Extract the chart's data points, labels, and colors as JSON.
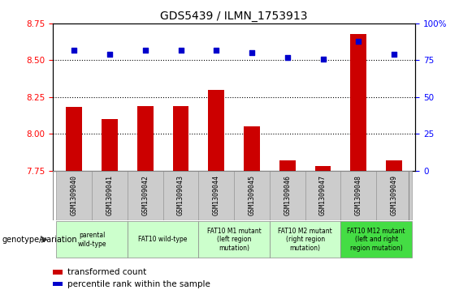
{
  "title": "GDS5439 / ILMN_1753913",
  "samples": [
    "GSM1309040",
    "GSM1309041",
    "GSM1309042",
    "GSM1309043",
    "GSM1309044",
    "GSM1309045",
    "GSM1309046",
    "GSM1309047",
    "GSM1309048",
    "GSM1309049"
  ],
  "transformed_count": [
    8.18,
    8.1,
    8.19,
    8.19,
    8.3,
    8.05,
    7.82,
    7.78,
    8.68,
    7.82
  ],
  "percentile_rank": [
    82,
    79,
    82,
    82,
    82,
    80,
    77,
    76,
    88,
    79
  ],
  "ylim_left": [
    7.75,
    8.75
  ],
  "ylim_right": [
    0,
    100
  ],
  "yticks_left": [
    7.75,
    8.0,
    8.25,
    8.5,
    8.75
  ],
  "yticks_right": [
    0,
    25,
    50,
    75,
    100
  ],
  "bar_color": "#cc0000",
  "dot_color": "#0000cc",
  "dot_size": 22,
  "bar_width": 0.45,
  "grid_dotted_values": [
    8.0,
    8.25,
    8.5
  ],
  "groups": [
    {
      "label": "parental\nwild-type",
      "cols": [
        0,
        1
      ],
      "bg": "#ccffcc"
    },
    {
      "label": "FAT10 wild-type",
      "cols": [
        2,
        3
      ],
      "bg": "#ccffcc"
    },
    {
      "label": "FAT10 M1 mutant\n(left region\nmutation)",
      "cols": [
        4,
        5
      ],
      "bg": "#ccffcc"
    },
    {
      "label": "FAT10 M2 mutant\n(right region\nmutation)",
      "cols": [
        6,
        7
      ],
      "bg": "#ccffcc"
    },
    {
      "label": "FAT10 M12 mutant\n(left and right\nregion mutation)",
      "cols": [
        8,
        9
      ],
      "bg": "#44dd44"
    }
  ],
  "legend_bar_label": "transformed count",
  "legend_dot_label": "percentile rank within the sample",
  "genotype_label": "genotype/variation"
}
